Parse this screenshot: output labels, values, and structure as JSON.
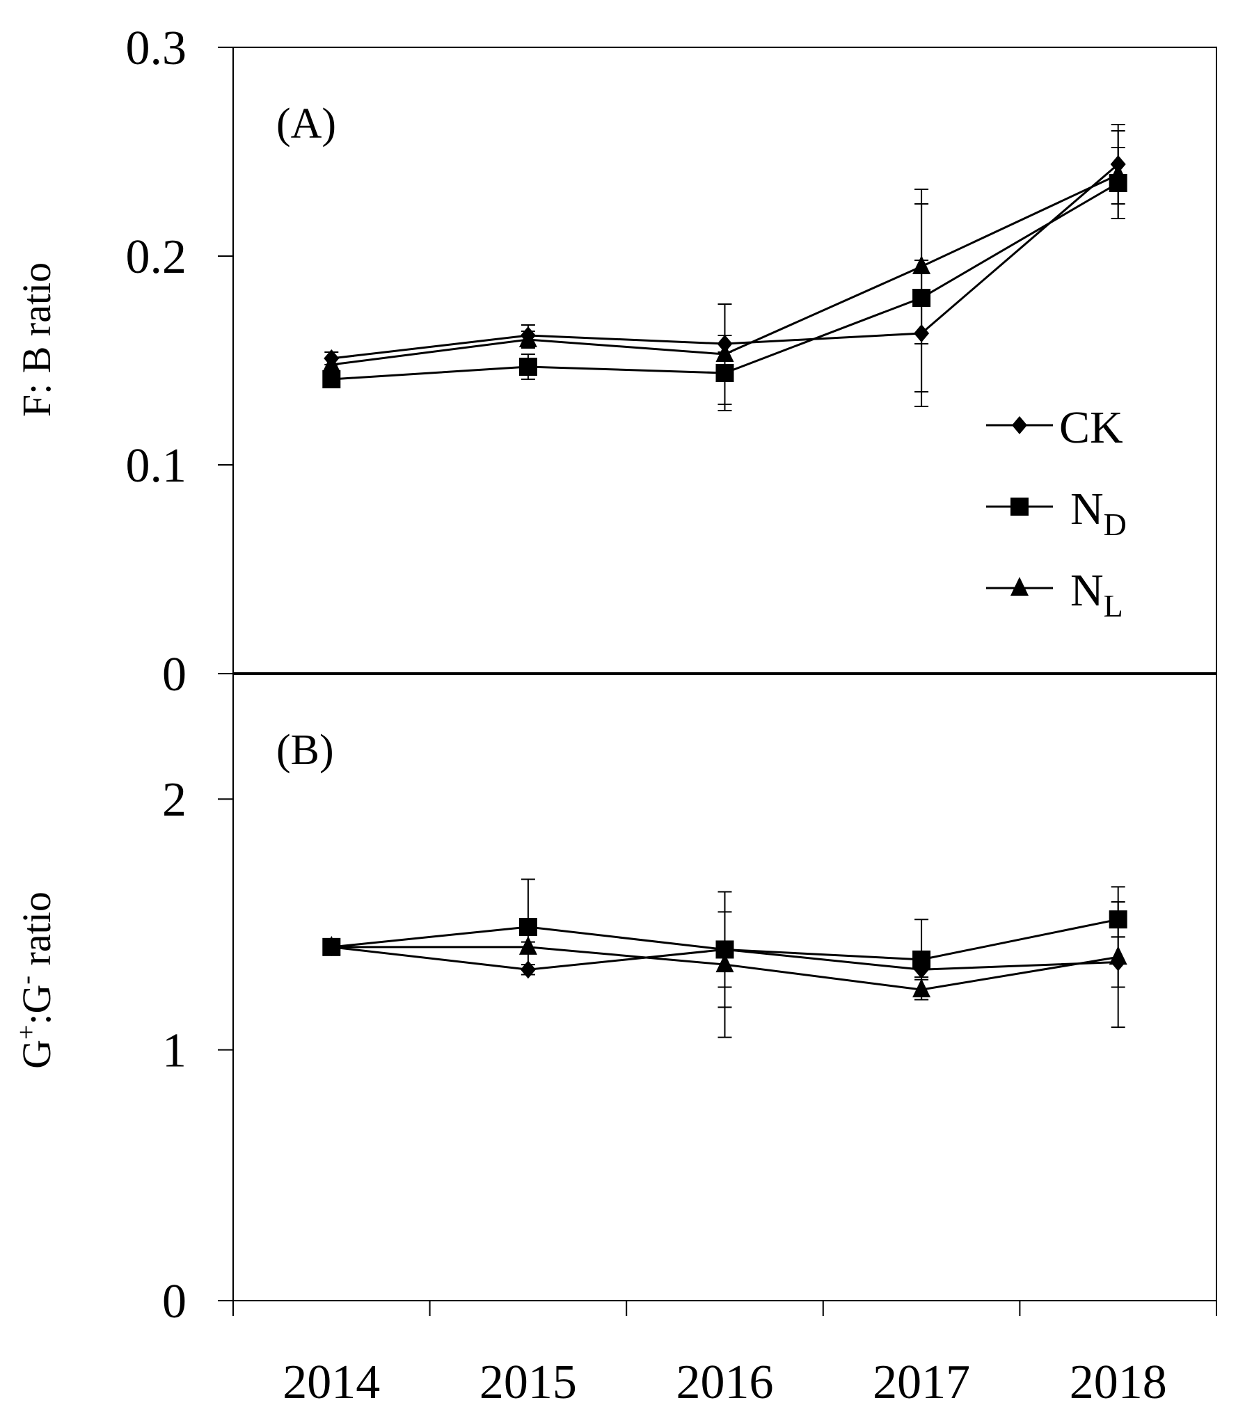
{
  "chart_data": [
    {
      "type": "line",
      "panel_label": "(A)",
      "ylabel": [
        "F: B ratio"
      ],
      "ylim": [
        0,
        0.3
      ],
      "yticks": [
        0,
        0.1,
        0.2,
        0.3
      ],
      "legend": "right",
      "series": [
        {
          "name": "CK",
          "marker": "diamond",
          "color": "#000000",
          "values": [
            0.151,
            0.162,
            0.158,
            0.163,
            0.244
          ],
          "errors": [
            0.003,
            0.005,
            0.004,
            0.035,
            0.019
          ]
        },
        {
          "name": "N",
          "name_subscript": "D",
          "marker": "square",
          "color": "#000000",
          "values": [
            0.141,
            0.147,
            0.144,
            0.18,
            0.235
          ],
          "errors": [
            0.003,
            0.006,
            0.018,
            0.045,
            0.017
          ]
        },
        {
          "name": "N",
          "name_subscript": "L",
          "marker": "triangle",
          "color": "#000000",
          "values": [
            0.148,
            0.16,
            0.153,
            0.195,
            0.239
          ],
          "errors": [
            0.003,
            0.004,
            0.024,
            0.037,
            0.021
          ]
        }
      ]
    },
    {
      "type": "line",
      "panel_label": "(B)",
      "ylabel": [
        "G",
        "+",
        ":G",
        "-",
        " ratio"
      ],
      "categories": [
        "2014",
        "2015",
        "2016",
        "2017",
        "2018"
      ],
      "ylim": [
        0,
        2.5
      ],
      "yticks": [
        0,
        1,
        2
      ],
      "series": [
        {
          "name": "CK",
          "marker": "diamond",
          "color": "#000000",
          "values": [
            1.41,
            1.32,
            1.4,
            1.32,
            1.35
          ],
          "errors": [
            0.02,
            0.02,
            0.15,
            0.03,
            0.1
          ]
        },
        {
          "name": "N",
          "name_subscript": "D",
          "marker": "square",
          "color": "#000000",
          "values": [
            1.41,
            1.49,
            1.4,
            1.36,
            1.52
          ],
          "errors": [
            0.02,
            0.19,
            0.23,
            0.16,
            0.07
          ]
        },
        {
          "name": "N",
          "name_subscript": "L",
          "marker": "triangle",
          "color": "#000000",
          "values": [
            1.41,
            1.41,
            1.34,
            1.24,
            1.37
          ],
          "errors": [
            0.02,
            0.02,
            0.29,
            0.04,
            0.28
          ]
        }
      ]
    }
  ]
}
